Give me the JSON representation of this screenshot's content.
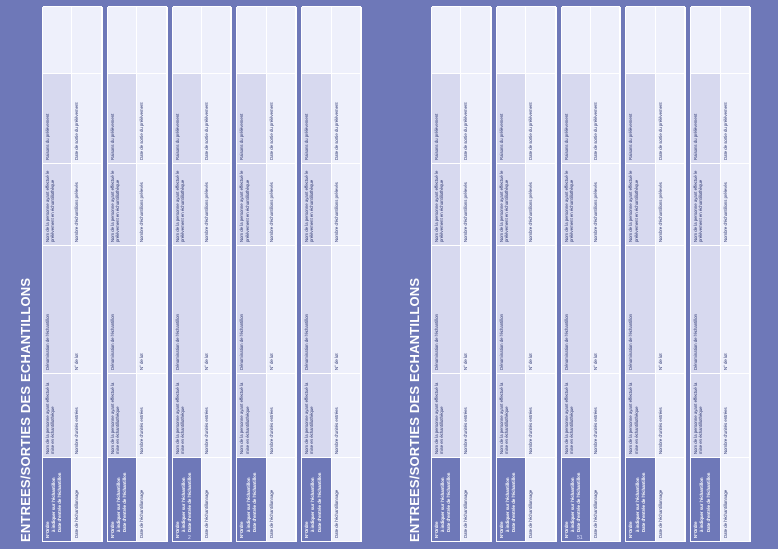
{
  "pages": [
    {
      "title": "ENTREES/SORTIES DES ECHANTILLONS",
      "page_number": "2",
      "blocks": 5
    },
    {
      "title": "ENTREES/SORTIES DES ECHANTILLONS",
      "page_number": "51",
      "blocks": 5
    }
  ],
  "labels": {
    "order": "N°Ordre",
    "to_inform": "à indiquer sur l'échantillon",
    "entry_date": "Date d'entrée de l'échantillon",
    "sampling_date": "Date de l'échantillonnage",
    "person_entry": "Nom de la personne ayant effectué la mise en échantillothèque",
    "nb_entries": "Nombre d'unités entrées",
    "denomination": "Dénomination de l'échantillon",
    "lot": "N° de lot",
    "person_exit": "Nom de la personne ayant effectué le prélèvement en échantillothèque",
    "nb_samples": "Nombre d'échantillons prélevés",
    "reason": "Raisons du prélèvement",
    "exit_date": "Date de sortie du prélèvement"
  }
}
